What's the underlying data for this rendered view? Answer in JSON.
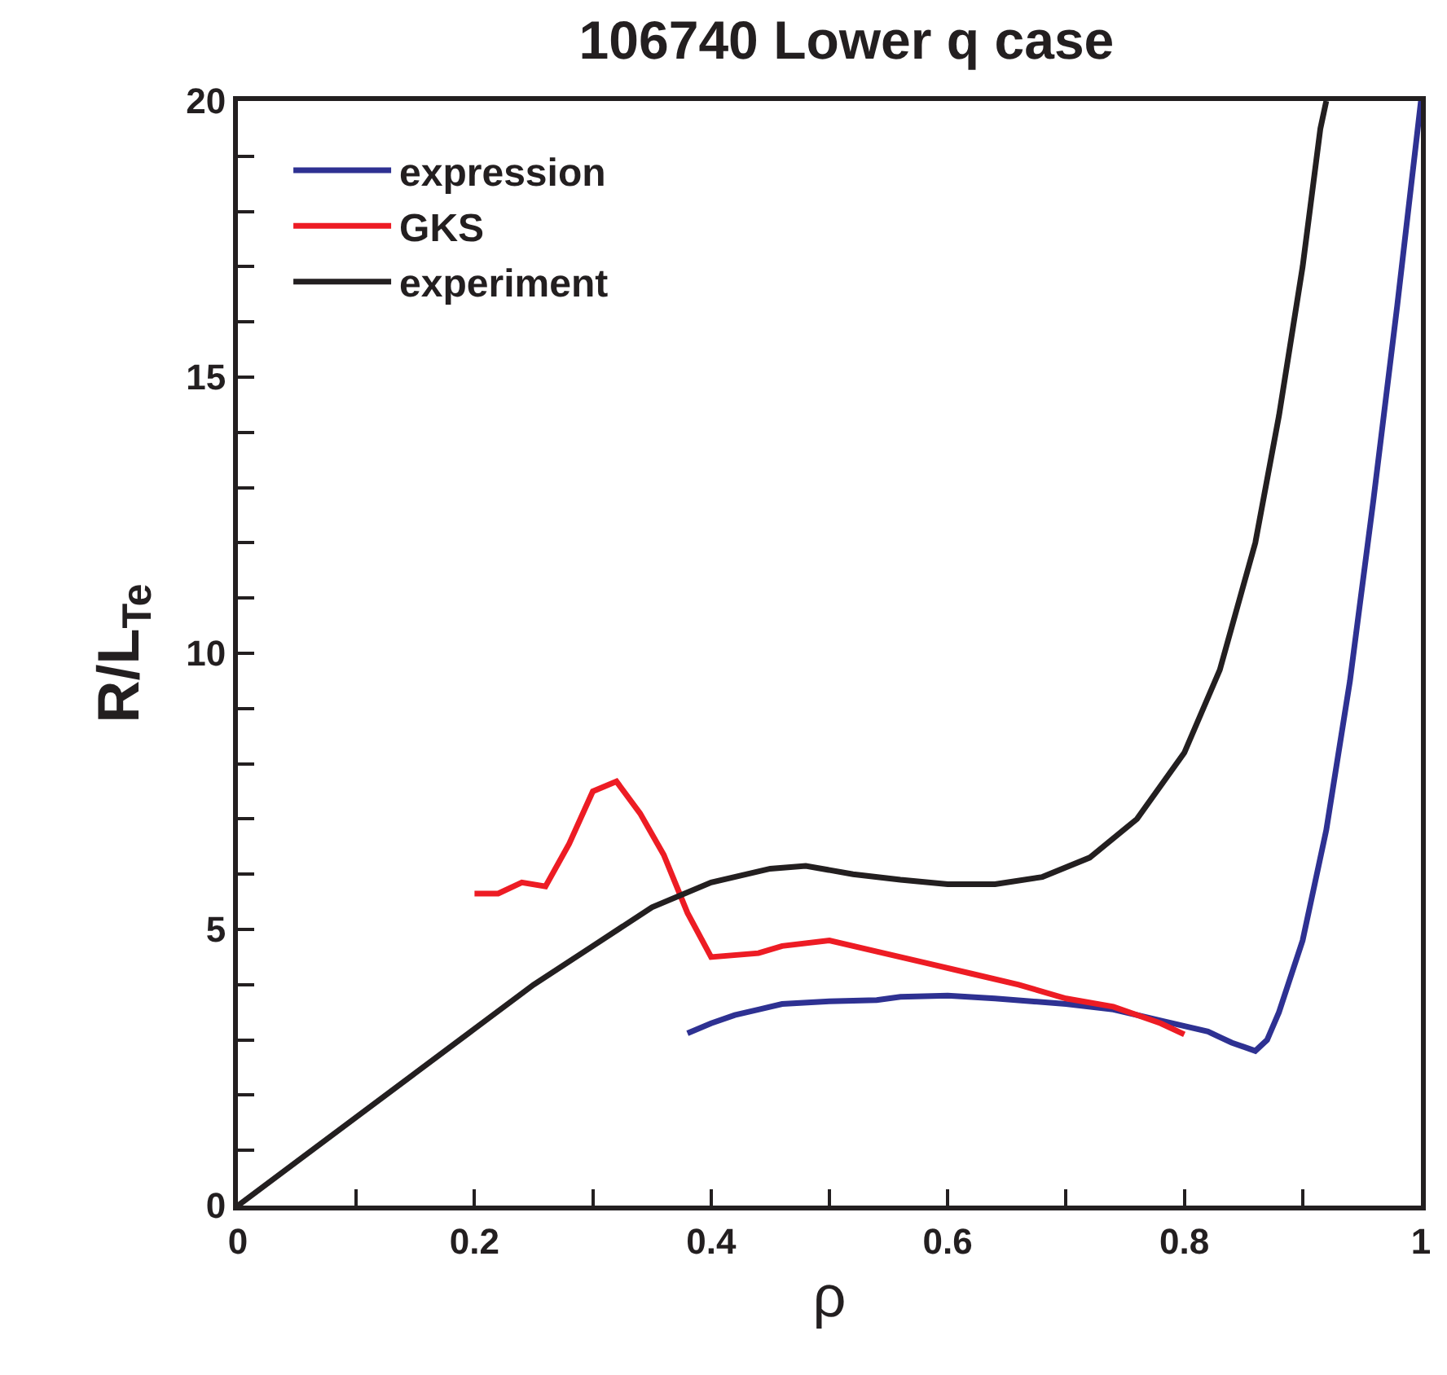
{
  "chart_data": {
    "type": "line",
    "title": "106740 Lower q case",
    "xlabel": "ρ",
    "ylabel": "R/L$_{Te}$",
    "xlim": [
      0,
      1
    ],
    "ylim": [
      0,
      20
    ],
    "xticks": [
      0,
      {
        "value": 0.1,
        "label": null
      },
      0.2,
      {
        "value": 0.3,
        "label": null
      },
      0.4,
      {
        "value": 0.5,
        "label": null
      },
      0.6,
      {
        "value": 0.7,
        "label": null
      },
      0.8,
      {
        "value": 0.9,
        "label": null
      },
      1
    ],
    "yticks": [
      0,
      {
        "value": 1,
        "label": null
      },
      {
        "value": 2,
        "label": null
      },
      {
        "value": 3,
        "label": null
      },
      {
        "value": 4,
        "label": null
      },
      5,
      {
        "value": 6,
        "label": null
      },
      {
        "value": 7,
        "label": null
      },
      {
        "value": 8,
        "label": null
      },
      {
        "value": 9,
        "label": null
      },
      10,
      {
        "value": 11,
        "label": null
      },
      {
        "value": 12,
        "label": null
      },
      {
        "value": 13,
        "label": null
      },
      {
        "value": 14,
        "label": null
      },
      15,
      {
        "value": 16,
        "label": null
      },
      {
        "value": 17,
        "label": null
      },
      {
        "value": 18,
        "label": null
      },
      {
        "value": 19,
        "label": null
      },
      20
    ],
    "grid": false,
    "legend": "top left",
    "marker": "none",
    "line_style": "solid",
    "series": [
      {
        "name": "expression",
        "color": "#2e3192",
        "x": [
          0.38,
          0.4,
          0.42,
          0.44,
          0.46,
          0.5,
          0.54,
          0.56,
          0.6,
          0.64,
          0.7,
          0.74,
          0.78,
          0.82,
          0.84,
          0.86,
          0.87,
          0.88,
          0.9,
          0.92,
          0.94,
          0.96,
          0.98,
          1.0
        ],
        "values": [
          3.12,
          3.3,
          3.45,
          3.55,
          3.65,
          3.7,
          3.72,
          3.78,
          3.8,
          3.75,
          3.65,
          3.55,
          3.35,
          3.15,
          2.95,
          2.8,
          3.0,
          3.5,
          4.8,
          6.8,
          9.5,
          12.8,
          16.3,
          20
        ]
      },
      {
        "name": "GKS",
        "color": "#ed1c24",
        "x": [
          0.2,
          0.22,
          0.24,
          0.26,
          0.28,
          0.3,
          0.32,
          0.34,
          0.36,
          0.38,
          0.4,
          0.44,
          0.46,
          0.5,
          0.54,
          0.58,
          0.62,
          0.66,
          0.7,
          0.74,
          0.78,
          0.8
        ],
        "values": [
          5.65,
          5.65,
          5.85,
          5.78,
          6.55,
          7.5,
          7.68,
          7.1,
          6.35,
          5.3,
          4.5,
          4.57,
          4.7,
          4.8,
          4.6,
          4.4,
          4.2,
          4.0,
          3.75,
          3.6,
          3.3,
          3.1
        ]
      },
      {
        "name": "experiment",
        "color": "#231f20",
        "x": [
          0,
          0.05,
          0.1,
          0.15,
          0.2,
          0.25,
          0.3,
          0.35,
          0.4,
          0.45,
          0.48,
          0.52,
          0.56,
          0.6,
          0.64,
          0.68,
          0.72,
          0.76,
          0.8,
          0.83,
          0.86,
          0.88,
          0.9,
          0.915,
          0.92
        ],
        "values": [
          0,
          0.8,
          1.6,
          2.4,
          3.2,
          4.0,
          4.7,
          5.4,
          5.85,
          6.1,
          6.15,
          6.0,
          5.9,
          5.82,
          5.82,
          5.95,
          6.3,
          7.0,
          8.2,
          9.7,
          12.0,
          14.3,
          17.0,
          19.5,
          20
        ]
      }
    ]
  }
}
